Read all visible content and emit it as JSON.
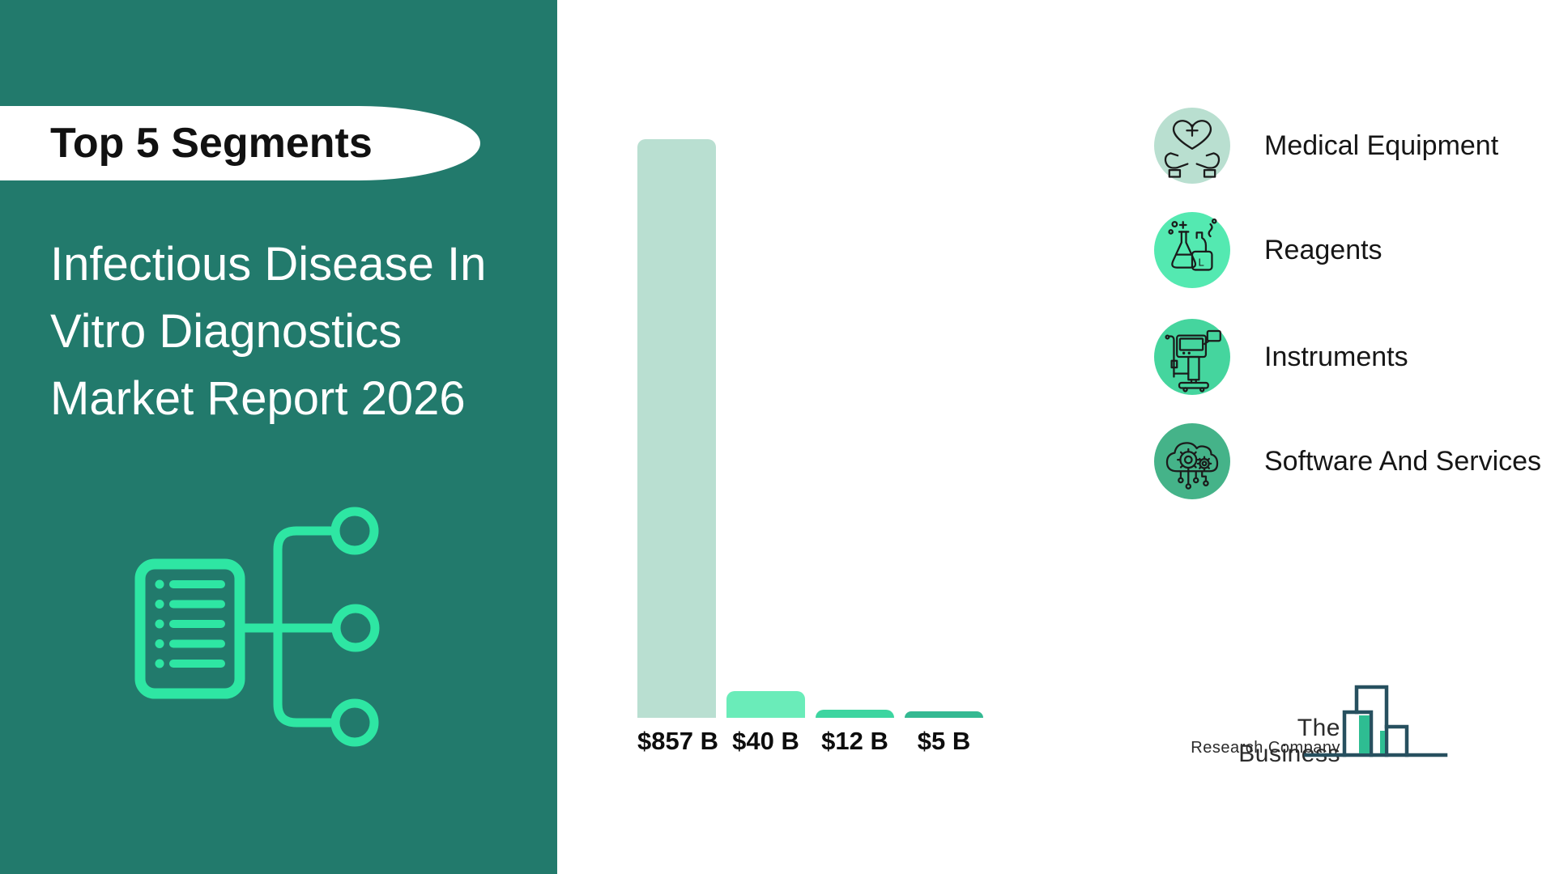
{
  "page": {
    "background": "#ffffff"
  },
  "sidebar": {
    "background": "#227A6C",
    "badge_label": "Top 5 Segments",
    "title_line1": "Infectious Disease In",
    "title_line2": "Vitro Diagnostics",
    "title_line3": "Market Report 2026",
    "icon": "document-flowchart-icon",
    "icon_color": "#2EE6A3"
  },
  "chart_data": {
    "type": "bar",
    "title": "",
    "categories": [
      "Medical Equipment",
      "Reagents",
      "Instruments",
      "Software And Services"
    ],
    "values": [
      857,
      40,
      12,
      5
    ],
    "value_labels": [
      "$857 B",
      "$40 B",
      "$12 B",
      "$5 B"
    ],
    "unit": "billion USD",
    "bar_colors": [
      "#B9DFD1",
      "#6AECB9",
      "#3DD5A0",
      "#34B992"
    ],
    "ylim": [
      0,
      857
    ],
    "grid": false,
    "legend_position": "right"
  },
  "legend": {
    "items": [
      {
        "label": "Medical Equipment",
        "color": "#B9DFD0",
        "icon": "hands-heart-cross-icon"
      },
      {
        "label": "Reagents",
        "color": "#54E9B1",
        "icon": "lab-flasks-icon"
      },
      {
        "label": "Instruments",
        "color": "#45D59E",
        "icon": "medical-machine-icon"
      },
      {
        "label": "Software And Services",
        "color": "#45B389",
        "icon": "cloud-gears-icon"
      }
    ]
  },
  "logo": {
    "name_line1": "The Business",
    "name_line2": "Research Company",
    "outline_color": "#27505F",
    "accent_color": "#2EBD92"
  }
}
